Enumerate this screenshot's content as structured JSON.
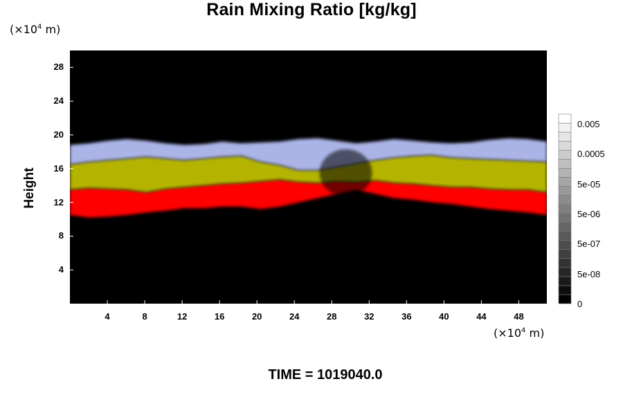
{
  "title": "Rain Mixing Ratio [kg/kg]",
  "y_unit": {
    "prefix": "(×10",
    "exp": "4",
    "suffix": " m)"
  },
  "x_unit": {
    "prefix": "(×10",
    "exp": "4",
    "suffix": " m)"
  },
  "time_label": "TIME = 1019040.0",
  "chart_data": {
    "type": "heatmap",
    "title": "Rain Mixing Ratio [kg/kg]",
    "xlabel": "",
    "ylabel": "Height",
    "x_range": [
      0,
      51
    ],
    "y_range": [
      0,
      30
    ],
    "x_ticks": [
      "4",
      "8",
      "12",
      "16",
      "20",
      "24",
      "28",
      "32",
      "36",
      "40",
      "44",
      "48"
    ],
    "x_tick_values": [
      4,
      8,
      12,
      16,
      20,
      24,
      28,
      32,
      36,
      40,
      44,
      48
    ],
    "y_ticks": [
      "4",
      "8",
      "12",
      "16",
      "20",
      "24",
      "28"
    ],
    "y_tick_values": [
      4,
      8,
      12,
      16,
      20,
      24,
      28
    ],
    "grid": false,
    "background_color": "#000000",
    "colorbar": {
      "labels": [
        "0.005",
        "0.0005",
        "5e-05",
        "5e-06",
        "5e-07",
        "5e-08",
        "0"
      ],
      "levels": 21,
      "colors": [
        "#000000",
        "#ffffff"
      ]
    },
    "layers": [
      {
        "color": "#ff0000",
        "bottom": [
          10.5,
          10.2,
          10.3,
          10.5,
          10.8,
          11.0,
          11.3,
          11.3,
          11.5,
          11.5,
          11.2,
          11.5,
          12.0,
          12.5,
          13.0,
          13.5,
          13.0,
          12.5,
          12.3,
          12.0,
          11.8,
          11.5,
          11.2,
          11.0,
          10.8,
          10.5
        ],
        "top": [
          13.5,
          13.7,
          13.6,
          13.5,
          13.2,
          13.6,
          13.8,
          14.0,
          14.2,
          14.3,
          14.5,
          14.7,
          14.4,
          14.3,
          14.5,
          14.4,
          14.6,
          14.3,
          14.2,
          14.0,
          13.8,
          13.8,
          13.6,
          13.5,
          13.5,
          13.2
        ]
      },
      {
        "color": "#b4b400",
        "top": [
          16.5,
          16.8,
          17.0,
          17.2,
          17.4,
          17.2,
          17.0,
          17.2,
          17.4,
          17.5,
          16.8,
          16.4,
          15.8,
          15.8,
          16.2,
          16.6,
          17.0,
          17.3,
          17.5,
          17.6,
          17.3,
          17.2,
          17.1,
          17.0,
          16.9,
          16.8
        ]
      },
      {
        "color": "#aab4e6",
        "top": [
          18.8,
          19.0,
          19.3,
          19.5,
          19.3,
          19.0,
          18.8,
          18.9,
          19.2,
          19.0,
          19.1,
          19.2,
          19.5,
          19.6,
          19.3,
          19.0,
          19.2,
          19.5,
          19.3,
          19.1,
          19.0,
          19.1,
          19.4,
          19.6,
          19.5,
          19.2
        ]
      }
    ]
  }
}
